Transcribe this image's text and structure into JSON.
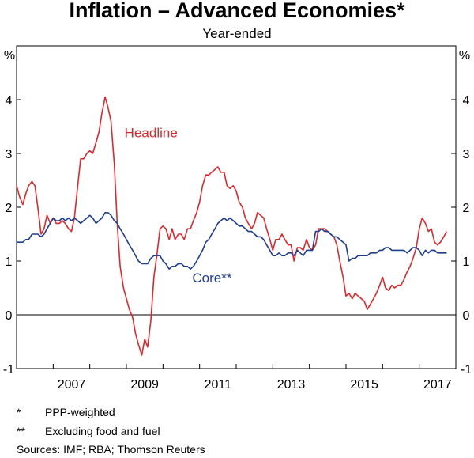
{
  "chart_data": {
    "type": "line",
    "title": "Inflation – Advanced Economies*",
    "subtitle": "Year-ended",
    "ylabel_left": "%",
    "ylabel_right": "%",
    "ylim": [
      -1,
      5
    ],
    "yticks": [
      -1,
      0,
      1,
      2,
      3,
      4
    ],
    "xlim": [
      2006.0,
      2018.0
    ],
    "xtick_labels": [
      {
        "label": "2007",
        "year": 2007
      },
      {
        "label": "2009",
        "year": 2009
      },
      {
        "label": "2011",
        "year": 2011
      },
      {
        "label": "2013",
        "year": 2013
      },
      {
        "label": "2015",
        "year": 2015
      },
      {
        "label": "2017",
        "year": 2017
      }
    ],
    "grid": false,
    "series": [
      {
        "name": "Headline",
        "color": "#e0262b",
        "points": [
          [
            2006.0,
            2.4
          ],
          [
            2006.08,
            2.2
          ],
          [
            2006.17,
            2.05
          ],
          [
            2006.25,
            2.25
          ],
          [
            2006.33,
            2.4
          ],
          [
            2006.42,
            2.48
          ],
          [
            2006.5,
            2.4
          ],
          [
            2006.58,
            2.0
          ],
          [
            2006.67,
            1.5
          ],
          [
            2006.75,
            1.6
          ],
          [
            2006.83,
            1.85
          ],
          [
            2006.92,
            1.7
          ],
          [
            2007.0,
            1.8
          ],
          [
            2007.08,
            1.7
          ],
          [
            2007.17,
            1.7
          ],
          [
            2007.25,
            1.75
          ],
          [
            2007.33,
            1.7
          ],
          [
            2007.42,
            1.6
          ],
          [
            2007.5,
            1.55
          ],
          [
            2007.58,
            1.8
          ],
          [
            2007.67,
            2.4
          ],
          [
            2007.75,
            2.9
          ],
          [
            2007.83,
            2.9
          ],
          [
            2007.92,
            3.0
          ],
          [
            2008.0,
            3.05
          ],
          [
            2008.08,
            3.0
          ],
          [
            2008.17,
            3.2
          ],
          [
            2008.25,
            3.4
          ],
          [
            2008.33,
            3.75
          ],
          [
            2008.42,
            4.05
          ],
          [
            2008.5,
            3.85
          ],
          [
            2008.58,
            3.6
          ],
          [
            2008.67,
            2.8
          ],
          [
            2008.75,
            1.7
          ],
          [
            2008.83,
            0.9
          ],
          [
            2008.92,
            0.5
          ],
          [
            2009.0,
            0.3
          ],
          [
            2009.08,
            0.1
          ],
          [
            2009.17,
            -0.05
          ],
          [
            2009.25,
            -0.35
          ],
          [
            2009.33,
            -0.55
          ],
          [
            2009.42,
            -0.75
          ],
          [
            2009.5,
            -0.45
          ],
          [
            2009.58,
            -0.6
          ],
          [
            2009.67,
            -0.1
          ],
          [
            2009.75,
            0.7
          ],
          [
            2009.83,
            1.1
          ],
          [
            2009.92,
            1.6
          ],
          [
            2010.0,
            1.65
          ],
          [
            2010.08,
            1.6
          ],
          [
            2010.17,
            1.4
          ],
          [
            2010.25,
            1.6
          ],
          [
            2010.33,
            1.4
          ],
          [
            2010.42,
            1.5
          ],
          [
            2010.5,
            1.5
          ],
          [
            2010.58,
            1.4
          ],
          [
            2010.67,
            1.6
          ],
          [
            2010.75,
            1.6
          ],
          [
            2010.83,
            1.75
          ],
          [
            2010.92,
            1.9
          ],
          [
            2011.0,
            2.1
          ],
          [
            2011.08,
            2.4
          ],
          [
            2011.17,
            2.6
          ],
          [
            2011.25,
            2.6
          ],
          [
            2011.33,
            2.65
          ],
          [
            2011.42,
            2.7
          ],
          [
            2011.5,
            2.75
          ],
          [
            2011.58,
            2.65
          ],
          [
            2011.67,
            2.65
          ],
          [
            2011.75,
            2.4
          ],
          [
            2011.83,
            2.35
          ],
          [
            2011.92,
            2.4
          ],
          [
            2012.0,
            2.3
          ],
          [
            2012.08,
            2.1
          ],
          [
            2012.17,
            2.0
          ],
          [
            2012.25,
            1.8
          ],
          [
            2012.33,
            1.7
          ],
          [
            2012.42,
            1.6
          ],
          [
            2012.5,
            1.7
          ],
          [
            2012.58,
            1.9
          ],
          [
            2012.67,
            1.85
          ],
          [
            2012.75,
            1.8
          ],
          [
            2012.83,
            1.6
          ],
          [
            2012.92,
            1.4
          ],
          [
            2013.0,
            1.2
          ],
          [
            2013.08,
            1.4
          ],
          [
            2013.17,
            1.4
          ],
          [
            2013.25,
            1.5
          ],
          [
            2013.33,
            1.4
          ],
          [
            2013.42,
            1.3
          ],
          [
            2013.5,
            1.3
          ],
          [
            2013.58,
            1.0
          ],
          [
            2013.67,
            1.25
          ],
          [
            2013.75,
            1.25
          ],
          [
            2013.83,
            1.2
          ],
          [
            2013.92,
            1.4
          ],
          [
            2014.0,
            1.25
          ],
          [
            2014.08,
            1.2
          ],
          [
            2014.17,
            1.3
          ],
          [
            2014.25,
            1.6
          ],
          [
            2014.33,
            1.6
          ],
          [
            2014.42,
            1.6
          ],
          [
            2014.5,
            1.55
          ],
          [
            2014.58,
            1.5
          ],
          [
            2014.67,
            1.45
          ],
          [
            2014.75,
            1.3
          ],
          [
            2014.83,
            1.0
          ],
          [
            2014.92,
            0.7
          ],
          [
            2015.0,
            0.35
          ],
          [
            2015.08,
            0.4
          ],
          [
            2015.17,
            0.3
          ],
          [
            2015.25,
            0.4
          ],
          [
            2015.33,
            0.35
          ],
          [
            2015.42,
            0.3
          ],
          [
            2015.5,
            0.25
          ],
          [
            2015.58,
            0.1
          ],
          [
            2015.67,
            0.2
          ],
          [
            2015.75,
            0.3
          ],
          [
            2015.83,
            0.4
          ],
          [
            2015.92,
            0.55
          ],
          [
            2016.0,
            0.7
          ],
          [
            2016.08,
            0.5
          ],
          [
            2016.17,
            0.45
          ],
          [
            2016.25,
            0.55
          ],
          [
            2016.33,
            0.5
          ],
          [
            2016.42,
            0.55
          ],
          [
            2016.5,
            0.55
          ],
          [
            2016.58,
            0.65
          ],
          [
            2016.67,
            0.8
          ],
          [
            2016.75,
            0.9
          ],
          [
            2016.83,
            1.05
          ],
          [
            2016.92,
            1.25
          ],
          [
            2017.0,
            1.6
          ],
          [
            2017.08,
            1.8
          ],
          [
            2017.17,
            1.7
          ],
          [
            2017.25,
            1.55
          ],
          [
            2017.33,
            1.6
          ],
          [
            2017.42,
            1.35
          ],
          [
            2017.5,
            1.3
          ],
          [
            2017.58,
            1.35
          ],
          [
            2017.67,
            1.45
          ],
          [
            2017.75,
            1.55
          ]
        ]
      },
      {
        "name": "Core**",
        "color": "#1f3d8f",
        "points": [
          [
            2006.0,
            1.35
          ],
          [
            2006.08,
            1.35
          ],
          [
            2006.17,
            1.35
          ],
          [
            2006.25,
            1.4
          ],
          [
            2006.33,
            1.4
          ],
          [
            2006.42,
            1.5
          ],
          [
            2006.5,
            1.5
          ],
          [
            2006.58,
            1.5
          ],
          [
            2006.67,
            1.45
          ],
          [
            2006.75,
            1.5
          ],
          [
            2006.83,
            1.6
          ],
          [
            2006.92,
            1.7
          ],
          [
            2007.0,
            1.8
          ],
          [
            2007.08,
            1.75
          ],
          [
            2007.17,
            1.75
          ],
          [
            2007.25,
            1.8
          ],
          [
            2007.33,
            1.75
          ],
          [
            2007.42,
            1.8
          ],
          [
            2007.5,
            1.75
          ],
          [
            2007.58,
            1.8
          ],
          [
            2007.67,
            1.75
          ],
          [
            2007.75,
            1.7
          ],
          [
            2007.83,
            1.75
          ],
          [
            2007.92,
            1.8
          ],
          [
            2008.0,
            1.85
          ],
          [
            2008.08,
            1.8
          ],
          [
            2008.17,
            1.7
          ],
          [
            2008.25,
            1.75
          ],
          [
            2008.33,
            1.8
          ],
          [
            2008.42,
            1.9
          ],
          [
            2008.5,
            1.9
          ],
          [
            2008.58,
            1.85
          ],
          [
            2008.67,
            1.75
          ],
          [
            2008.75,
            1.7
          ],
          [
            2008.83,
            1.6
          ],
          [
            2008.92,
            1.5
          ],
          [
            2009.0,
            1.4
          ],
          [
            2009.08,
            1.3
          ],
          [
            2009.17,
            1.2
          ],
          [
            2009.25,
            1.1
          ],
          [
            2009.33,
            1.0
          ],
          [
            2009.42,
            0.95
          ],
          [
            2009.5,
            0.95
          ],
          [
            2009.58,
            0.95
          ],
          [
            2009.67,
            1.05
          ],
          [
            2009.75,
            1.1
          ],
          [
            2009.83,
            1.1
          ],
          [
            2009.92,
            1.1
          ],
          [
            2010.0,
            1.0
          ],
          [
            2010.08,
            0.95
          ],
          [
            2010.17,
            0.85
          ],
          [
            2010.25,
            0.9
          ],
          [
            2010.33,
            0.9
          ],
          [
            2010.42,
            0.95
          ],
          [
            2010.5,
            0.95
          ],
          [
            2010.58,
            0.9
          ],
          [
            2010.67,
            0.9
          ],
          [
            2010.75,
            0.85
          ],
          [
            2010.83,
            0.9
          ],
          [
            2010.92,
            1.0
          ],
          [
            2011.0,
            1.1
          ],
          [
            2011.08,
            1.2
          ],
          [
            2011.17,
            1.35
          ],
          [
            2011.25,
            1.4
          ],
          [
            2011.33,
            1.5
          ],
          [
            2011.42,
            1.6
          ],
          [
            2011.5,
            1.7
          ],
          [
            2011.58,
            1.75
          ],
          [
            2011.67,
            1.8
          ],
          [
            2011.75,
            1.75
          ],
          [
            2011.83,
            1.8
          ],
          [
            2011.92,
            1.75
          ],
          [
            2012.0,
            1.7
          ],
          [
            2012.08,
            1.65
          ],
          [
            2012.17,
            1.65
          ],
          [
            2012.25,
            1.6
          ],
          [
            2012.33,
            1.55
          ],
          [
            2012.42,
            1.55
          ],
          [
            2012.5,
            1.5
          ],
          [
            2012.58,
            1.45
          ],
          [
            2012.67,
            1.45
          ],
          [
            2012.75,
            1.4
          ],
          [
            2012.83,
            1.3
          ],
          [
            2012.92,
            1.2
          ],
          [
            2013.0,
            1.1
          ],
          [
            2013.08,
            1.1
          ],
          [
            2013.17,
            1.15
          ],
          [
            2013.25,
            1.1
          ],
          [
            2013.33,
            1.1
          ],
          [
            2013.42,
            1.15
          ],
          [
            2013.5,
            1.15
          ],
          [
            2013.58,
            1.1
          ],
          [
            2013.67,
            1.2
          ],
          [
            2013.75,
            1.15
          ],
          [
            2013.83,
            1.1
          ],
          [
            2013.92,
            1.2
          ],
          [
            2014.0,
            1.2
          ],
          [
            2014.08,
            1.2
          ],
          [
            2014.17,
            1.55
          ],
          [
            2014.25,
            1.55
          ],
          [
            2014.33,
            1.6
          ],
          [
            2014.42,
            1.55
          ],
          [
            2014.5,
            1.55
          ],
          [
            2014.58,
            1.5
          ],
          [
            2014.67,
            1.45
          ],
          [
            2014.75,
            1.45
          ],
          [
            2014.83,
            1.4
          ],
          [
            2014.92,
            1.35
          ],
          [
            2015.0,
            1.3
          ],
          [
            2015.08,
            1.0
          ],
          [
            2015.17,
            1.05
          ],
          [
            2015.25,
            1.05
          ],
          [
            2015.33,
            1.1
          ],
          [
            2015.42,
            1.1
          ],
          [
            2015.5,
            1.1
          ],
          [
            2015.58,
            1.1
          ],
          [
            2015.67,
            1.15
          ],
          [
            2015.75,
            1.15
          ],
          [
            2015.83,
            1.15
          ],
          [
            2015.92,
            1.2
          ],
          [
            2016.0,
            1.2
          ],
          [
            2016.08,
            1.25
          ],
          [
            2016.17,
            1.25
          ],
          [
            2016.25,
            1.2
          ],
          [
            2016.33,
            1.2
          ],
          [
            2016.42,
            1.2
          ],
          [
            2016.5,
            1.2
          ],
          [
            2016.58,
            1.2
          ],
          [
            2016.67,
            1.15
          ],
          [
            2016.75,
            1.2
          ],
          [
            2016.83,
            1.25
          ],
          [
            2016.92,
            1.25
          ],
          [
            2017.0,
            1.2
          ],
          [
            2017.08,
            1.1
          ],
          [
            2017.17,
            1.2
          ],
          [
            2017.25,
            1.15
          ],
          [
            2017.33,
            1.2
          ],
          [
            2017.42,
            1.2
          ],
          [
            2017.5,
            1.15
          ],
          [
            2017.58,
            1.15
          ],
          [
            2017.67,
            1.15
          ],
          [
            2017.75,
            1.15
          ]
        ]
      }
    ],
    "annotations": [
      {
        "text": "Headline",
        "series": "Headline",
        "x": 2008.95,
        "y": 3.3
      },
      {
        "text": "Core**",
        "series": "Core**",
        "x": 2010.8,
        "y": 0.6
      }
    ]
  },
  "notes": [
    {
      "mark": "*",
      "text": "PPP-weighted"
    },
    {
      "mark": "**",
      "text": "Excluding food and fuel"
    }
  ],
  "sources": "Sources: IMF; RBA; Thomson Reuters"
}
